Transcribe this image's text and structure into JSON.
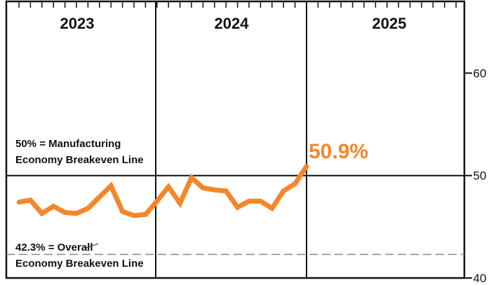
{
  "chart_data": {
    "type": "line",
    "periods": [
      "2023",
      "2024",
      "2025"
    ],
    "x": [
      "2023-01",
      "2023-02",
      "2023-03",
      "2023-04",
      "2023-05",
      "2023-06",
      "2023-07",
      "2023-08",
      "2023-09",
      "2023-10",
      "2023-11",
      "2023-12",
      "2024-01",
      "2024-02",
      "2024-03",
      "2024-04",
      "2024-05",
      "2024-06",
      "2024-07",
      "2024-08",
      "2024-09",
      "2024-10",
      "2024-11",
      "2024-12",
      "2025-01",
      "2025-02"
    ],
    "values": [
      47.4,
      47.6,
      46.3,
      47.0,
      46.4,
      46.3,
      46.8,
      47.9,
      49.0,
      46.5,
      46.1,
      46.2,
      47.5,
      48.9,
      47.3,
      49.8,
      48.8,
      48.6,
      48.5,
      46.9,
      47.5,
      47.5,
      46.8,
      48.5,
      49.2,
      50.9
    ],
    "ylim": [
      40,
      67
    ],
    "yticks": [
      40,
      50,
      60
    ],
    "ytick_labels": [
      "40",
      "50",
      "60"
    ],
    "reference_lines": [
      {
        "value": 50,
        "style": "solid",
        "label_lines": [
          "50% = Manufacturing",
          "Economy Breakeven Line"
        ]
      },
      {
        "value": 42.3,
        "style": "dashed",
        "label_lines": [
          "42.3% = Overall",
          "Economy Breakeven Line"
        ]
      }
    ],
    "callout": "50.9%",
    "colors": {
      "line": "#F5862A",
      "callout": "#F5862A",
      "frame": "#111111",
      "dashed": "#888888"
    }
  }
}
